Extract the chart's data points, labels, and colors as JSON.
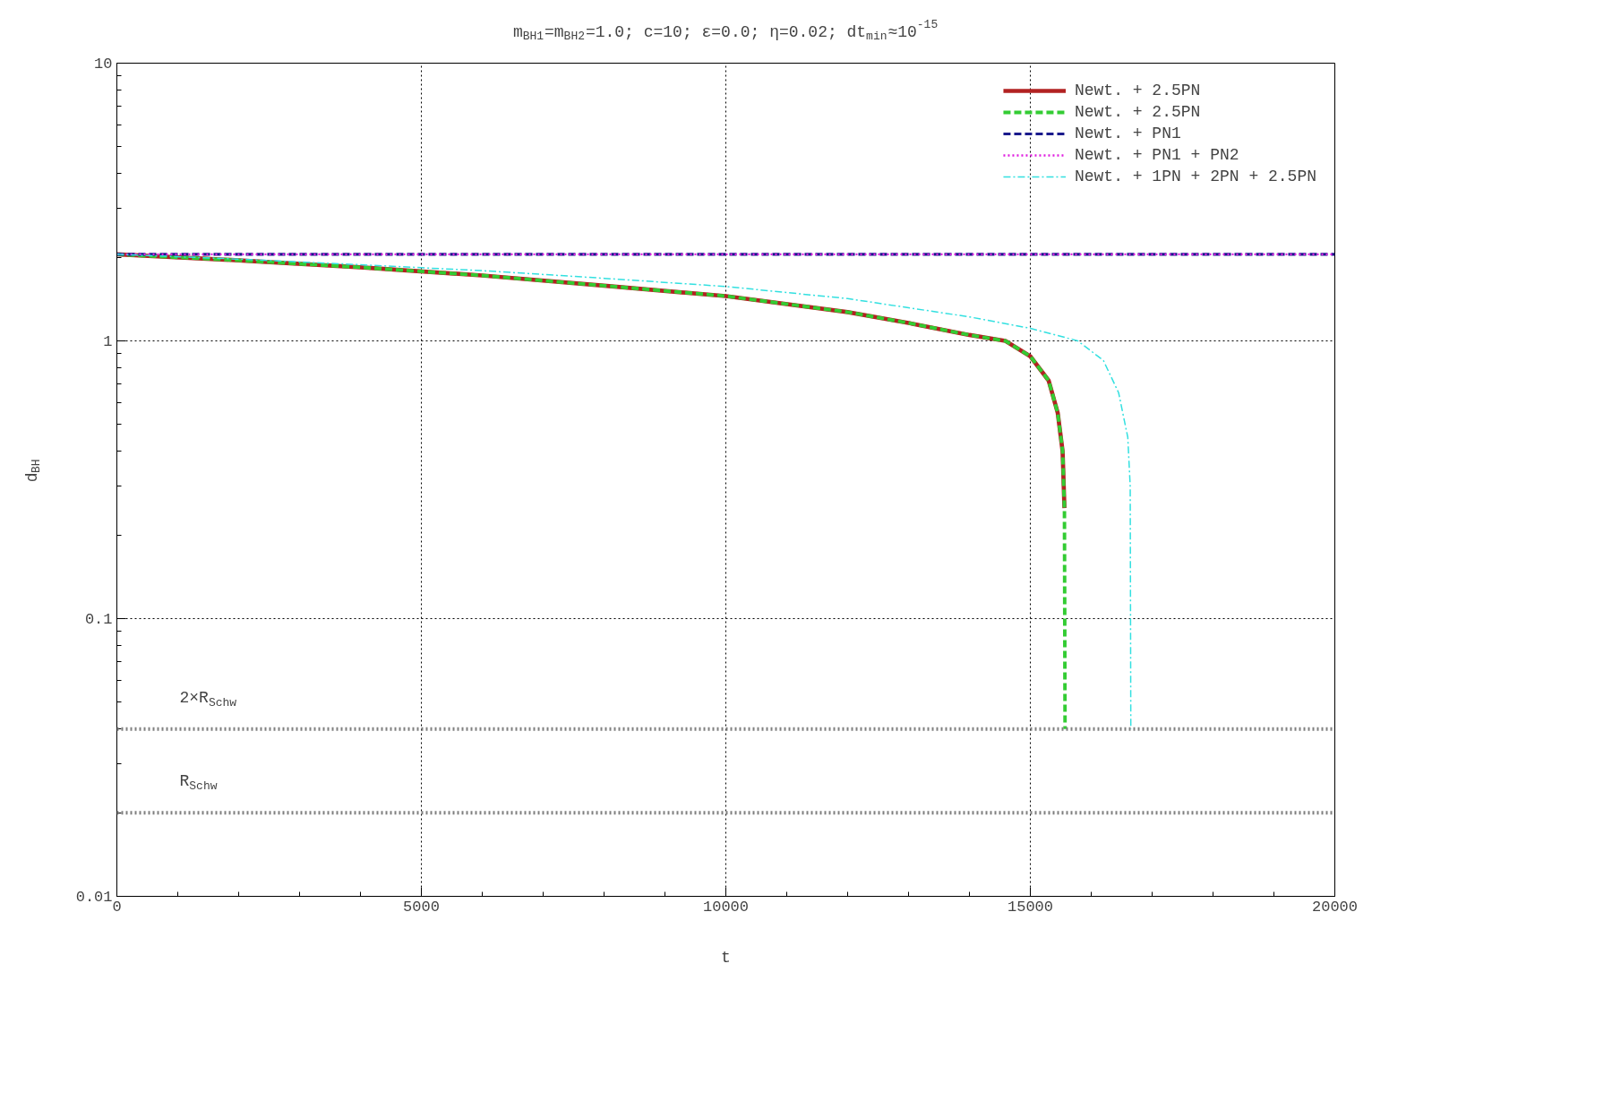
{
  "chart_data": {
    "type": "line",
    "title": "m$_{BH1}$=m$_{BH2}$=1.0; c=10; ε=0.0; η=0.02; dt$_{min}$≈10$^{-15}$",
    "xlabel": "t",
    "ylabel": "d$_{BH}$",
    "log": "y",
    "grid": true,
    "legend": "top right",
    "xlim": [
      0,
      20000
    ],
    "xticks": [
      0,
      5000,
      10000,
      15000,
      20000
    ],
    "ylim": [
      0.01,
      10
    ],
    "yticks": [
      0.01,
      0.1,
      1,
      10
    ],
    "series": [
      {
        "name": "Newt. + 2.5PN",
        "color": "#b22222",
        "line_style": "solid",
        "x": [
          0,
          2000,
          4000,
          6000,
          8000,
          10000,
          12000,
          13000,
          14000,
          14590,
          15000,
          15300,
          15450,
          15530,
          15560
        ],
        "values": [
          2.05,
          1.95,
          1.84,
          1.72,
          1.58,
          1.45,
          1.27,
          1.16,
          1.05,
          1.0,
          0.88,
          0.72,
          0.55,
          0.4,
          0.25
        ]
      },
      {
        "name": "Newt. + 2.5PN",
        "color": "#33cc33",
        "line_style": "dashed",
        "x": [
          0,
          2000,
          4000,
          6000,
          8000,
          10000,
          12000,
          13000,
          14000,
          14590,
          15000,
          15300,
          15450,
          15530,
          15560,
          15570
        ],
        "values": [
          2.05,
          1.95,
          1.84,
          1.72,
          1.58,
          1.45,
          1.27,
          1.16,
          1.05,
          1.0,
          0.88,
          0.72,
          0.55,
          0.4,
          0.25,
          0.04
        ]
      },
      {
        "name": "Newt. + PN1",
        "color": "#1a1a8c",
        "line_style": "dashed",
        "x": [
          0,
          20000
        ],
        "values": [
          2.05,
          2.05
        ]
      },
      {
        "name": "Newt. + PN1 + PN2",
        "color": "#e020e0",
        "line_style": "dotted",
        "x": [
          0,
          20000
        ],
        "values": [
          2.05,
          2.05
        ]
      },
      {
        "name": "Newt. + 1PN + 2PN + 2.5PN",
        "color": "#33e0e0",
        "line_style": "dashdot",
        "x": [
          0,
          2000,
          4000,
          6000,
          8000,
          10000,
          12000,
          14000,
          15000,
          15780,
          16200,
          16450,
          16600,
          16640,
          16650
        ],
        "values": [
          2.05,
          1.97,
          1.88,
          1.79,
          1.68,
          1.57,
          1.42,
          1.22,
          1.11,
          1.0,
          0.85,
          0.65,
          0.45,
          0.3,
          0.04
        ]
      }
    ],
    "ref_lines": [
      {
        "axis": "y",
        "value": 0.04,
        "label": "2×R$_{Schw}$",
        "color": "#808080",
        "line_style": "dotted"
      },
      {
        "axis": "y",
        "value": 0.02,
        "label": "R$_{Schw}$",
        "color": "#808080",
        "line_style": "dotted"
      }
    ]
  }
}
